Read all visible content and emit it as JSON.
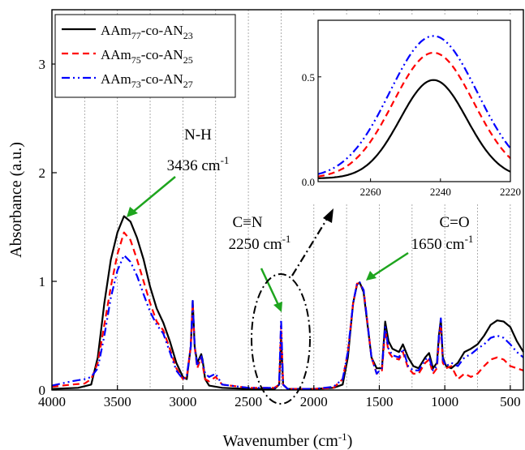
{
  "chart_data": {
    "type": "line",
    "xlabel": "Wavenumber (cm",
    "xlabel_sup": "-1",
    "xlabel_suffix": ")",
    "ylabel": "Absorbance (a.u.)",
    "xlim": [
      4000,
      400
    ],
    "ylim": [
      0,
      3.5
    ],
    "x_reversed": true,
    "x_ticks": [
      "4000",
      "3500",
      "3000",
      "2500",
      "2000",
      "1500",
      "1000",
      "500"
    ],
    "y_ticks": [
      "0",
      "1",
      "2",
      "3"
    ],
    "grid": "vertical dotted lines",
    "legend_placement": "top-left",
    "legend": [
      {
        "sub1": "77",
        "sub2": "23"
      },
      {
        "sub1": "75",
        "sub2": "25"
      },
      {
        "sub1": "73",
        "sub2": "27"
      }
    ],
    "series": [
      {
        "name": "AAm77-co-AN23",
        "color": "#000000",
        "dash": "solid",
        "points": [
          [
            4000,
            0.01
          ],
          [
            3800,
            0.02
          ],
          [
            3700,
            0.05
          ],
          [
            3650,
            0.3
          ],
          [
            3600,
            0.8
          ],
          [
            3550,
            1.2
          ],
          [
            3500,
            1.45
          ],
          [
            3450,
            1.6
          ],
          [
            3400,
            1.55
          ],
          [
            3350,
            1.4
          ],
          [
            3300,
            1.2
          ],
          [
            3250,
            0.95
          ],
          [
            3200,
            0.75
          ],
          [
            3150,
            0.62
          ],
          [
            3100,
            0.45
          ],
          [
            3050,
            0.25
          ],
          [
            3000,
            0.12
          ],
          [
            2970,
            0.1
          ],
          [
            2940,
            0.4
          ],
          [
            2925,
            0.82
          ],
          [
            2910,
            0.4
          ],
          [
            2890,
            0.25
          ],
          [
            2860,
            0.33
          ],
          [
            2850,
            0.28
          ],
          [
            2830,
            0.1
          ],
          [
            2800,
            0.04
          ],
          [
            2700,
            0.02
          ],
          [
            2500,
            0.01
          ],
          [
            2300,
            0.01
          ],
          [
            2265,
            0.05
          ],
          [
            2250,
            0.48
          ],
          [
            2235,
            0.05
          ],
          [
            2200,
            0.01
          ],
          [
            2000,
            0.01
          ],
          [
            1850,
            0.02
          ],
          [
            1780,
            0.05
          ],
          [
            1740,
            0.3
          ],
          [
            1700,
            0.8
          ],
          [
            1670,
            0.97
          ],
          [
            1650,
            0.99
          ],
          [
            1620,
            0.9
          ],
          [
            1600,
            0.7
          ],
          [
            1560,
            0.3
          ],
          [
            1520,
            0.2
          ],
          [
            1480,
            0.2
          ],
          [
            1455,
            0.63
          ],
          [
            1430,
            0.45
          ],
          [
            1400,
            0.38
          ],
          [
            1350,
            0.35
          ],
          [
            1320,
            0.42
          ],
          [
            1280,
            0.3
          ],
          [
            1240,
            0.22
          ],
          [
            1200,
            0.2
          ],
          [
            1150,
            0.3
          ],
          [
            1120,
            0.34
          ],
          [
            1090,
            0.2
          ],
          [
            1060,
            0.25
          ],
          [
            1045,
            0.5
          ],
          [
            1030,
            0.65
          ],
          [
            1015,
            0.3
          ],
          [
            990,
            0.22
          ],
          [
            950,
            0.2
          ],
          [
            900,
            0.25
          ],
          [
            850,
            0.35
          ],
          [
            800,
            0.38
          ],
          [
            750,
            0.42
          ],
          [
            700,
            0.5
          ],
          [
            650,
            0.6
          ],
          [
            600,
            0.64
          ],
          [
            550,
            0.63
          ],
          [
            500,
            0.58
          ],
          [
            450,
            0.45
          ],
          [
            400,
            0.35
          ]
        ]
      },
      {
        "name": "AAm75-co-AN25",
        "color": "#ff0000",
        "dash": "8,5",
        "points": [
          [
            4000,
            0.03
          ],
          [
            3850,
            0.05
          ],
          [
            3750,
            0.06
          ],
          [
            3700,
            0.1
          ],
          [
            3650,
            0.25
          ],
          [
            3600,
            0.6
          ],
          [
            3550,
            0.95
          ],
          [
            3500,
            1.25
          ],
          [
            3450,
            1.45
          ],
          [
            3400,
            1.38
          ],
          [
            3350,
            1.2
          ],
          [
            3300,
            1.0
          ],
          [
            3250,
            0.8
          ],
          [
            3200,
            0.63
          ],
          [
            3150,
            0.55
          ],
          [
            3100,
            0.38
          ],
          [
            3050,
            0.2
          ],
          [
            3000,
            0.1
          ],
          [
            2970,
            0.12
          ],
          [
            2940,
            0.4
          ],
          [
            2925,
            0.8
          ],
          [
            2910,
            0.4
          ],
          [
            2890,
            0.2
          ],
          [
            2860,
            0.3
          ],
          [
            2830,
            0.1
          ],
          [
            2800,
            0.08
          ],
          [
            2750,
            0.12
          ],
          [
            2700,
            0.05
          ],
          [
            2500,
            0.02
          ],
          [
            2300,
            0.02
          ],
          [
            2265,
            0.05
          ],
          [
            2250,
            0.6
          ],
          [
            2235,
            0.05
          ],
          [
            2200,
            0.01
          ],
          [
            2000,
            0.01
          ],
          [
            1850,
            0.02
          ],
          [
            1780,
            0.1
          ],
          [
            1740,
            0.35
          ],
          [
            1700,
            0.8
          ],
          [
            1670,
            0.98
          ],
          [
            1650,
            0.98
          ],
          [
            1620,
            0.92
          ],
          [
            1600,
            0.72
          ],
          [
            1560,
            0.3
          ],
          [
            1520,
            0.15
          ],
          [
            1480,
            0.18
          ],
          [
            1455,
            0.55
          ],
          [
            1430,
            0.35
          ],
          [
            1400,
            0.3
          ],
          [
            1350,
            0.28
          ],
          [
            1320,
            0.35
          ],
          [
            1280,
            0.2
          ],
          [
            1240,
            0.15
          ],
          [
            1200,
            0.15
          ],
          [
            1150,
            0.25
          ],
          [
            1120,
            0.28
          ],
          [
            1090,
            0.15
          ],
          [
            1060,
            0.2
          ],
          [
            1045,
            0.45
          ],
          [
            1030,
            0.6
          ],
          [
            1015,
            0.25
          ],
          [
            990,
            0.2
          ],
          [
            950,
            0.22
          ],
          [
            900,
            0.1
          ],
          [
            850,
            0.15
          ],
          [
            800,
            0.12
          ],
          [
            750,
            0.15
          ],
          [
            700,
            0.22
          ],
          [
            650,
            0.28
          ],
          [
            600,
            0.3
          ],
          [
            550,
            0.28
          ],
          [
            500,
            0.22
          ],
          [
            450,
            0.2
          ],
          [
            400,
            0.18
          ]
        ]
      },
      {
        "name": "AAm73-co-AN27",
        "color": "#0000ff",
        "dash": "10,4,2,4,2,4",
        "points": [
          [
            4000,
            0.04
          ],
          [
            3850,
            0.08
          ],
          [
            3750,
            0.1
          ],
          [
            3700,
            0.12
          ],
          [
            3650,
            0.2
          ],
          [
            3600,
            0.5
          ],
          [
            3550,
            0.85
          ],
          [
            3500,
            1.1
          ],
          [
            3450,
            1.24
          ],
          [
            3400,
            1.18
          ],
          [
            3350,
            1.05
          ],
          [
            3300,
            0.88
          ],
          [
            3250,
            0.72
          ],
          [
            3200,
            0.6
          ],
          [
            3150,
            0.52
          ],
          [
            3100,
            0.35
          ],
          [
            3050,
            0.18
          ],
          [
            3000,
            0.1
          ],
          [
            2970,
            0.13
          ],
          [
            2940,
            0.4
          ],
          [
            2925,
            0.82
          ],
          [
            2910,
            0.4
          ],
          [
            2890,
            0.22
          ],
          [
            2860,
            0.32
          ],
          [
            2830,
            0.15
          ],
          [
            2800,
            0.12
          ],
          [
            2750,
            0.15
          ],
          [
            2700,
            0.05
          ],
          [
            2500,
            0.02
          ],
          [
            2300,
            0.02
          ],
          [
            2265,
            0.05
          ],
          [
            2250,
            0.65
          ],
          [
            2235,
            0.05
          ],
          [
            2200,
            0.01
          ],
          [
            2000,
            0.01
          ],
          [
            1850,
            0.03
          ],
          [
            1780,
            0.1
          ],
          [
            1740,
            0.35
          ],
          [
            1700,
            0.8
          ],
          [
            1670,
            0.98
          ],
          [
            1650,
            0.99
          ],
          [
            1620,
            0.92
          ],
          [
            1600,
            0.72
          ],
          [
            1560,
            0.3
          ],
          [
            1520,
            0.15
          ],
          [
            1480,
            0.2
          ],
          [
            1455,
            0.58
          ],
          [
            1430,
            0.38
          ],
          [
            1400,
            0.32
          ],
          [
            1350,
            0.3
          ],
          [
            1320,
            0.38
          ],
          [
            1280,
            0.22
          ],
          [
            1240,
            0.18
          ],
          [
            1200,
            0.18
          ],
          [
            1150,
            0.28
          ],
          [
            1120,
            0.3
          ],
          [
            1090,
            0.18
          ],
          [
            1060,
            0.22
          ],
          [
            1045,
            0.5
          ],
          [
            1030,
            0.66
          ],
          [
            1015,
            0.28
          ],
          [
            990,
            0.22
          ],
          [
            950,
            0.25
          ],
          [
            900,
            0.22
          ],
          [
            850,
            0.3
          ],
          [
            800,
            0.33
          ],
          [
            750,
            0.38
          ],
          [
            700,
            0.42
          ],
          [
            650,
            0.48
          ],
          [
            600,
            0.5
          ],
          [
            550,
            0.48
          ],
          [
            500,
            0.42
          ],
          [
            450,
            0.35
          ],
          [
            400,
            0.3
          ]
        ]
      }
    ],
    "annotations": [
      {
        "line1": "N-H",
        "line2": "3436 cm",
        "sup": "-1"
      },
      {
        "line1": "C≡N",
        "line2": "2250 cm",
        "sup": "-1"
      },
      {
        "line1": "C=O",
        "line2": "1650 cm",
        "sup": "-1"
      }
    ],
    "inset": {
      "xlim": [
        2275,
        2220
      ],
      "ylim": [
        0,
        0.77
      ],
      "x_ticks": [
        "2260",
        "2240",
        "2220"
      ],
      "y_ticks": [
        "0.0",
        "0.5"
      ],
      "peak_x": 2242,
      "peaks": [
        {
          "color": "#000000",
          "amplitude": 0.47,
          "width": 9.5,
          "baseline": 0.0
        },
        {
          "color": "#ff0000",
          "amplitude": 0.6,
          "width": 11.5,
          "baseline": 0.0
        },
        {
          "color": "#0000ff",
          "amplitude": 0.68,
          "width": 12.5,
          "baseline": 0.0
        }
      ]
    }
  }
}
